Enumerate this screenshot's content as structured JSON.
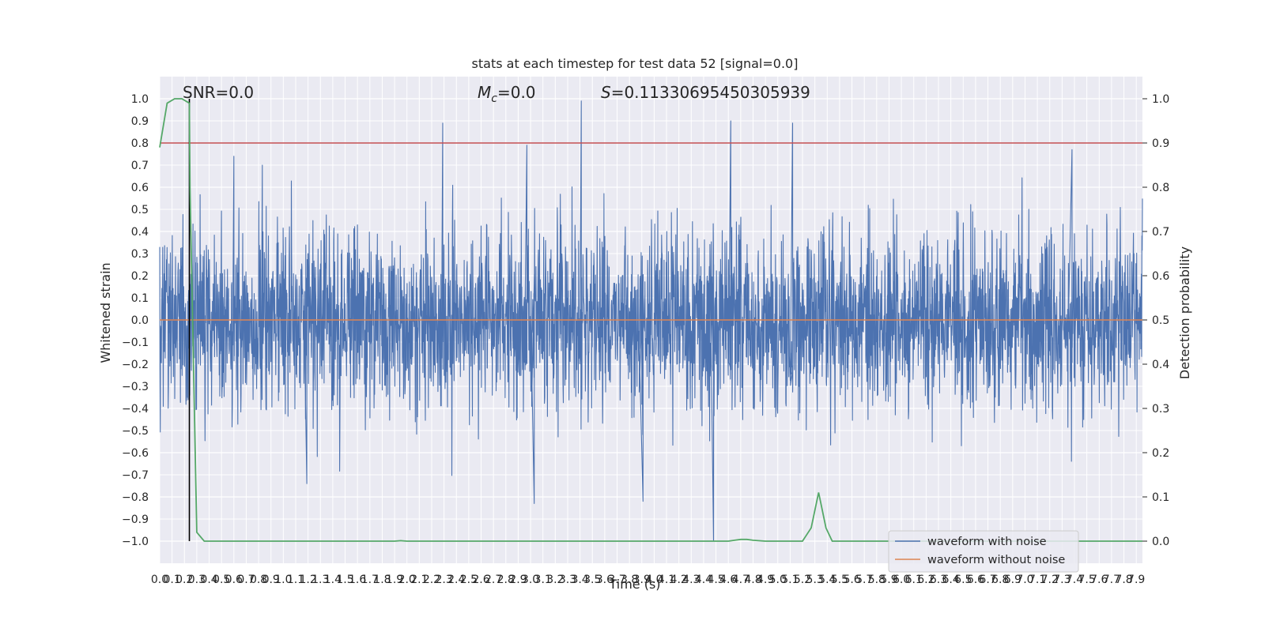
{
  "chart_data": {
    "type": "line",
    "title": "stats at each timestep for test data 52 [signal=0.0]",
    "xlabel": "Time (s)",
    "ylabel": "Whitened strain",
    "y2label": "Detection probability",
    "xlim": [
      0.0,
      7.95
    ],
    "ylim": [
      -1.1,
      1.1
    ],
    "y2lim": [
      -0.05,
      1.05
    ],
    "x_ticks": [
      0.0,
      0.1,
      0.2,
      0.3,
      0.4,
      0.5,
      0.6,
      0.7,
      0.8,
      0.9,
      1.0,
      1.1,
      1.2,
      1.3,
      1.4,
      1.5,
      1.6,
      1.7,
      1.8,
      1.9,
      2.0,
      2.1,
      2.2,
      2.3,
      2.4,
      2.5,
      2.6,
      2.7,
      2.8,
      2.9,
      3.0,
      3.1,
      3.2,
      3.3,
      3.4,
      3.5,
      3.6,
      3.7,
      3.8,
      3.9,
      4.0,
      4.1,
      4.2,
      4.3,
      4.4,
      4.5,
      4.6,
      4.7,
      4.8,
      4.9,
      5.0,
      5.1,
      5.2,
      5.3,
      5.4,
      5.5,
      5.6,
      5.7,
      5.8,
      5.9,
      6.0,
      6.1,
      6.2,
      6.3,
      6.4,
      6.5,
      6.6,
      6.7,
      6.8,
      6.9,
      7.0,
      7.1,
      7.2,
      7.3,
      7.4,
      7.5,
      7.6,
      7.7,
      7.8,
      7.9
    ],
    "x_tick_labels": [
      "0.0",
      "0.1",
      "0.2",
      "0.3",
      "0.4",
      "0.5",
      "0.6",
      "0.7",
      "0.8",
      "0.9",
      "1.0",
      "1.1",
      "1.2",
      "1.3",
      "1.4",
      "1.5",
      "1.6",
      "1.7",
      "1.8",
      "1.9",
      "2.0",
      "2.1",
      "2.2",
      "2.3",
      "2.4",
      "2.5",
      "2.6",
      "2.7",
      "2.8",
      "2.9",
      "3.0",
      "3.1",
      "3.2",
      "3.3",
      "3.4",
      "3.5",
      "3.6",
      "3.7",
      "3.8",
      "3.9",
      "4.0",
      "4.1",
      "4.2",
      "4.3",
      "4.4",
      "4.5",
      "4.6",
      "4.7",
      "4.8",
      "4.9",
      "5.0",
      "5.1",
      "5.2",
      "5.3",
      "5.4",
      "5.5",
      "5.6",
      "5.7",
      "5.8",
      "5.9",
      "6.0",
      "6.1",
      "6.2",
      "6.3",
      "6.4",
      "6.5",
      "6.6",
      "6.7",
      "6.8",
      "6.9",
      "7.0",
      "7.1",
      "7.2",
      "7.3",
      "7.4",
      "7.5",
      "7.6",
      "7.7",
      "7.8",
      "7.9"
    ],
    "y_ticks": [
      1.0,
      0.9,
      0.8,
      0.7,
      0.6,
      0.5,
      0.4,
      0.3,
      0.2,
      0.1,
      0.0,
      -0.1,
      -0.2,
      -0.3,
      -0.4,
      -0.5,
      -0.6,
      -0.7,
      -0.8,
      -0.9,
      -1.0
    ],
    "y_tick_labels": [
      "1.0",
      "0.9",
      "0.8",
      "0.7",
      "0.6",
      "0.5",
      "0.4",
      "0.3",
      "0.2",
      "0.1",
      "0.0",
      "−0.1",
      "−0.2",
      "−0.3",
      "−0.4",
      "−0.5",
      "−0.6",
      "−0.7",
      "−0.8",
      "−0.9",
      "−1.0"
    ],
    "y2_ticks": [
      1.0,
      0.9,
      0.8,
      0.7,
      0.6,
      0.5,
      0.4,
      0.3,
      0.2,
      0.1,
      0.0
    ],
    "y2_tick_labels": [
      "1.0",
      "0.9",
      "0.8",
      "0.7",
      "0.6",
      "0.5",
      "0.4",
      "0.3",
      "0.2",
      "0.1",
      "0.0"
    ],
    "annotations": {
      "snr": "SNR=0.0",
      "mc_symbol": "M",
      "mc_sub": "c",
      "mc_value": "=0.0",
      "s_symbol": "S",
      "s_value": "=0.11330695450305939"
    },
    "series": [
      {
        "name": "waveform with noise",
        "color": "#4c72b0",
        "axis": "left",
        "description_values": "dense noise samples, mostly within -0.4..0.4",
        "notable_peaks": [
          {
            "x": 0.24,
            "y": 0.84
          },
          {
            "x": 2.29,
            "y": 0.89
          },
          {
            "x": 3.41,
            "y": 0.99
          },
          {
            "x": 4.62,
            "y": 0.9
          },
          {
            "x": 5.12,
            "y": 0.89
          },
          {
            "x": 0.6,
            "y": 0.74
          },
          {
            "x": 0.83,
            "y": 0.7
          },
          {
            "x": 2.97,
            "y": 0.79
          },
          {
            "x": 7.38,
            "y": 0.77
          },
          {
            "x": 4.48,
            "y": -1.0
          },
          {
            "x": 3.03,
            "y": -0.83
          },
          {
            "x": 3.91,
            "y": -0.82
          },
          {
            "x": 1.19,
            "y": -0.74
          }
        ]
      },
      {
        "name": "waveform without noise",
        "color": "#dd8452",
        "axis": "left",
        "values_constant": 0.0
      },
      {
        "name": "",
        "color": "#55a868",
        "axis": "right",
        "x": [
          0.0,
          0.06,
          0.12,
          0.18,
          0.24,
          0.245,
          0.3,
          0.36,
          0.42,
          1.9,
          1.95,
          2.0,
          4.6,
          4.65,
          4.7,
          4.75,
          4.8,
          4.9,
          5.0,
          5.1,
          5.2,
          5.27,
          5.33,
          5.39,
          5.44,
          5.6,
          7.95
        ],
        "values": [
          0.89,
          0.99,
          1.0,
          1.0,
          0.99,
          0.8,
          0.02,
          0.0,
          0.0,
          0.0,
          0.001,
          0.0,
          0.0,
          0.002,
          0.004,
          0.004,
          0.002,
          0.0,
          0.0,
          0.0,
          0.0,
          0.03,
          0.11,
          0.03,
          0.0,
          0.0,
          0.0
        ]
      }
    ],
    "threshold": {
      "axis": "right",
      "value": 0.9,
      "color": "#c44e52"
    },
    "marker_line": {
      "x": 0.24,
      "color": "#000000"
    },
    "legend": {
      "placement": "lower-right",
      "entries": [
        "waveform with noise",
        "waveform without noise"
      ]
    },
    "grid": true
  }
}
